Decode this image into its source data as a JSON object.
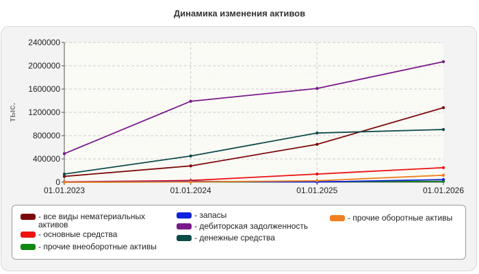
{
  "chart_data": {
    "type": "line",
    "title": "Динамика изменения активов",
    "ylabel": "тыс.",
    "xlabel": "",
    "categories": [
      "01.01.2023",
      "01.01.2024",
      "01.01.2025",
      "01.01.2026"
    ],
    "ylim": [
      0,
      2400000
    ],
    "yticks": [
      "0",
      "400000",
      "800000",
      "1200000",
      "1600000",
      "2000000",
      "2400000"
    ],
    "grid": true,
    "legend_position": "bottom",
    "series": [
      {
        "name": "все виды нематериальных активов",
        "color": "#7a0a0a",
        "values": [
          100000,
          280000,
          650000,
          1280000
        ]
      },
      {
        "name": "основные средства",
        "color": "#ee1111",
        "values": [
          5000,
          30000,
          140000,
          250000
        ]
      },
      {
        "name": "прочие внеоборотные активы",
        "color": "#118811",
        "values": [
          0,
          5000,
          10000,
          15000
        ]
      },
      {
        "name": "запасы",
        "color": "#1122dd",
        "values": [
          2000,
          15000,
          5000,
          45000
        ]
      },
      {
        "name": "дебиторская задолженность",
        "color": "#7a1a8a",
        "values": [
          490000,
          1390000,
          1610000,
          2070000
        ]
      },
      {
        "name": "денежные средства",
        "color": "#0d4a4a",
        "values": [
          140000,
          450000,
          845000,
          905000
        ]
      },
      {
        "name": "прочие оборотные активы",
        "color": "#f08020",
        "values": [
          0,
          5000,
          25000,
          120000
        ]
      }
    ]
  }
}
